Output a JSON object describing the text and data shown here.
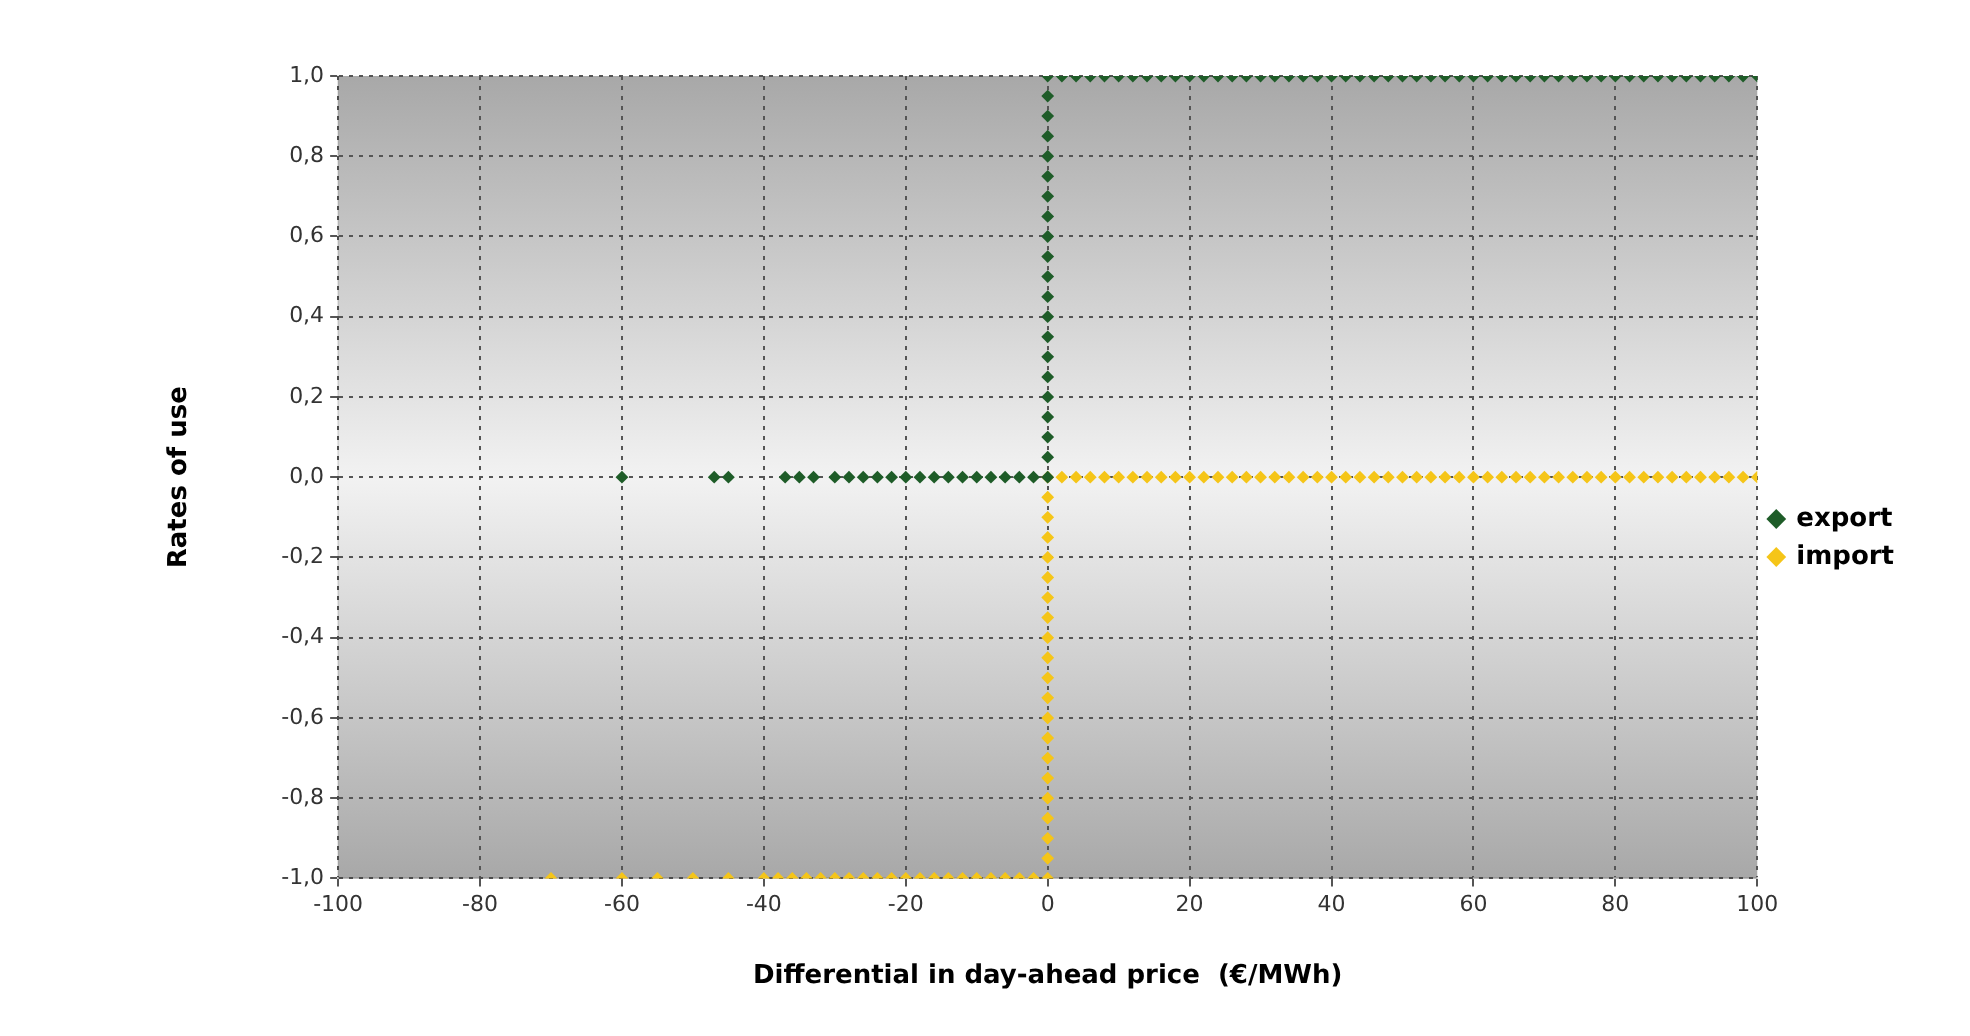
{
  "chart_data": {
    "type": "scatter",
    "xlabel": "Differential in day-ahead price  (€/MWh)",
    "ylabel": "Rates of use",
    "xlim": [
      -100,
      100
    ],
    "ylim": [
      -1,
      1
    ],
    "xticks": [
      -100,
      -80,
      -60,
      -40,
      -20,
      0,
      20,
      40,
      60,
      80,
      100
    ],
    "yticks": [
      {
        "value": 1,
        "label": "1,0"
      },
      {
        "value": 0.8,
        "label": "0,8"
      },
      {
        "value": 0.6,
        "label": "0,6"
      },
      {
        "value": 0.4,
        "label": "0,4"
      },
      {
        "value": 0.2,
        "label": "0,2"
      },
      {
        "value": 0,
        "label": "0,0"
      },
      {
        "value": -0.2,
        "label": "-0,2"
      },
      {
        "value": -0.4,
        "label": "-0,4"
      },
      {
        "value": -0.6,
        "label": "-0,6"
      },
      {
        "value": -0.8,
        "label": "-0,8"
      },
      {
        "value": -1,
        "label": "-1,0"
      }
    ],
    "grid": true,
    "legend": "right",
    "marker": "diamond",
    "series": [
      {
        "name": "export",
        "color": "#1e5c28",
        "x": [
          -60,
          -47,
          -45,
          -37,
          -35,
          -33,
          -30,
          -28,
          -26,
          -24,
          -22,
          -20,
          -18,
          -16,
          -14,
          -12,
          -10,
          -8,
          -6,
          -4,
          -2,
          0,
          0,
          0,
          0,
          0,
          0,
          0,
          0,
          0,
          0,
          0,
          0,
          0,
          0,
          0,
          0,
          0,
          0,
          0,
          0,
          0,
          2,
          4,
          6,
          8,
          10,
          12,
          14,
          16,
          18,
          20,
          22,
          24,
          26,
          28,
          30,
          32,
          34,
          36,
          38,
          40,
          42,
          44,
          46,
          48,
          50,
          52,
          54,
          56,
          58,
          60,
          62,
          64,
          66,
          68,
          70,
          72,
          74,
          76,
          78,
          80,
          82,
          84,
          86,
          88,
          90,
          92,
          94,
          96,
          98,
          100
        ],
        "values": [
          0,
          0,
          0,
          0,
          0,
          0,
          0,
          0,
          0,
          0,
          0,
          0,
          0,
          0,
          0,
          0,
          0,
          0,
          0,
          0,
          0,
          0,
          0.05,
          0.1,
          0.15,
          0.2,
          0.25,
          0.3,
          0.35,
          0.4,
          0.45,
          0.5,
          0.55,
          0.6,
          0.65,
          0.7,
          0.75,
          0.8,
          0.85,
          0.9,
          0.95,
          1,
          1,
          1,
          1,
          1,
          1,
          1,
          1,
          1,
          1,
          1,
          1,
          1,
          1,
          1,
          1,
          1,
          1,
          1,
          1,
          1,
          1,
          1,
          1,
          1,
          1,
          1,
          1,
          1,
          1,
          1,
          1,
          1,
          1,
          1,
          1,
          1,
          1,
          1,
          1,
          1,
          1,
          1,
          1,
          1,
          1,
          1,
          1,
          1,
          1,
          1
        ]
      },
      {
        "name": "import",
        "color": "#f5c518",
        "x": [
          -70,
          -60,
          -55,
          -50,
          -45,
          -40,
          -38,
          -36,
          -34,
          -32,
          -30,
          -28,
          -26,
          -24,
          -22,
          -20,
          -18,
          -16,
          -14,
          -12,
          -10,
          -8,
          -6,
          -4,
          -2,
          0,
          0,
          0,
          0,
          0,
          0,
          0,
          0,
          0,
          0,
          0,
          0,
          0,
          0,
          0,
          0,
          0,
          0,
          0,
          0,
          0,
          2,
          4,
          6,
          8,
          10,
          12,
          14,
          16,
          18,
          20,
          22,
          24,
          26,
          28,
          30,
          32,
          34,
          36,
          38,
          40,
          42,
          44,
          46,
          48,
          50,
          52,
          54,
          56,
          58,
          60,
          62,
          64,
          66,
          68,
          70,
          72,
          74,
          76,
          78,
          80,
          82,
          84,
          86,
          88,
          90,
          92,
          94,
          96,
          98,
          100
        ],
        "values": [
          -1,
          -1,
          -1,
          -1,
          -1,
          -1,
          -1,
          -1,
          -1,
          -1,
          -1,
          -1,
          -1,
          -1,
          -1,
          -1,
          -1,
          -1,
          -1,
          -1,
          -1,
          -1,
          -1,
          -1,
          -1,
          -1,
          -0.95,
          -0.9,
          -0.85,
          -0.8,
          -0.75,
          -0.7,
          -0.65,
          -0.6,
          -0.55,
          -0.5,
          -0.45,
          -0.4,
          -0.35,
          -0.3,
          -0.25,
          -0.2,
          -0.15,
          -0.1,
          -0.05,
          0,
          0,
          0,
          0,
          0,
          0,
          0,
          0,
          0,
          0,
          0,
          0,
          0,
          0,
          0,
          0,
          0,
          0,
          0,
          0,
          0,
          0,
          0,
          0,
          0,
          0,
          0,
          0,
          0,
          0,
          0,
          0,
          0,
          0,
          0,
          0,
          0,
          0,
          0,
          0,
          0,
          0,
          0,
          0,
          0,
          0,
          0,
          0,
          0,
          0,
          0
        ]
      }
    ]
  }
}
